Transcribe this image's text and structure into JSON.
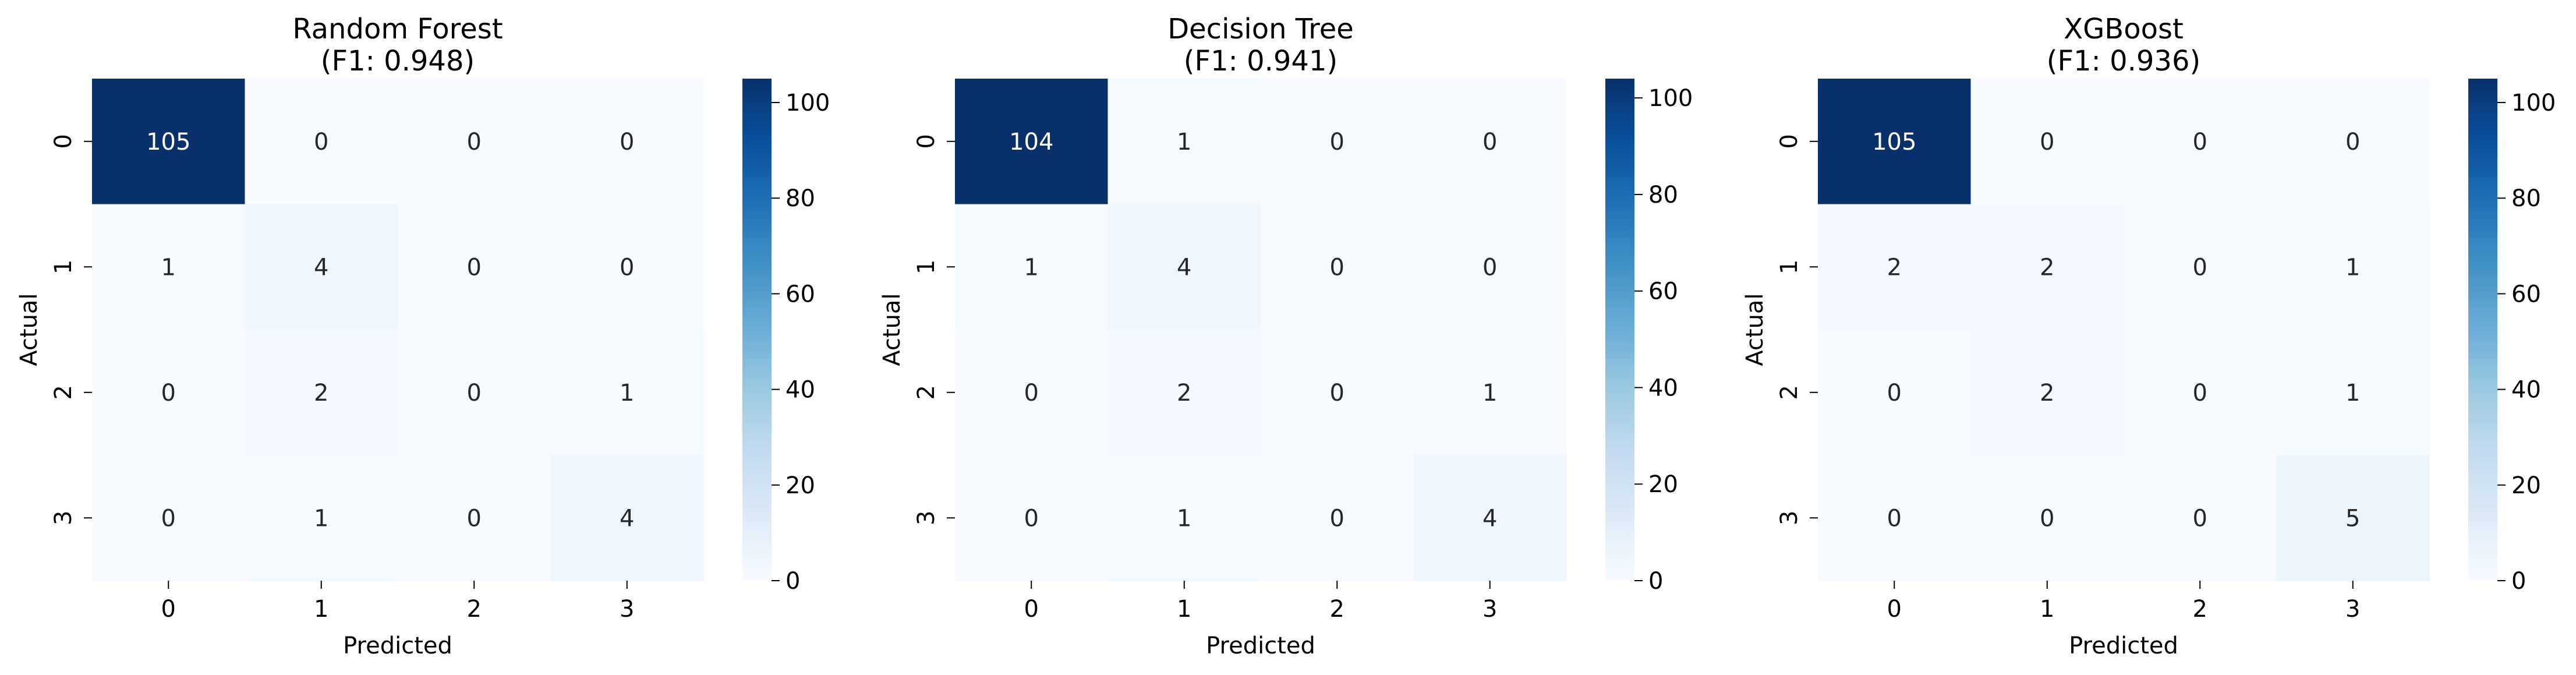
{
  "chart_data": [
    {
      "type": "heatmap",
      "title": "Random Forest",
      "subtitle": "(F1: 0.948)",
      "xlabel": "Predicted",
      "ylabel": "Actual",
      "x_categories": [
        "0",
        "1",
        "2",
        "3"
      ],
      "y_categories": [
        "0",
        "1",
        "2",
        "3"
      ],
      "matrix": [
        [
          105,
          0,
          0,
          0
        ],
        [
          1,
          4,
          0,
          0
        ],
        [
          0,
          2,
          0,
          1
        ],
        [
          0,
          1,
          0,
          4
        ]
      ],
      "colorbar": {
        "min": 0,
        "max": 105,
        "ticks": [
          "0",
          "20",
          "40",
          "60",
          "80",
          "100"
        ]
      },
      "colormap": "Blues"
    },
    {
      "type": "heatmap",
      "title": "Decision Tree",
      "subtitle": "(F1: 0.941)",
      "xlabel": "Predicted",
      "ylabel": "Actual",
      "x_categories": [
        "0",
        "1",
        "2",
        "3"
      ],
      "y_categories": [
        "0",
        "1",
        "2",
        "3"
      ],
      "matrix": [
        [
          104,
          1,
          0,
          0
        ],
        [
          1,
          4,
          0,
          0
        ],
        [
          0,
          2,
          0,
          1
        ],
        [
          0,
          1,
          0,
          4
        ]
      ],
      "colorbar": {
        "min": 0,
        "max": 104,
        "ticks": [
          "0",
          "20",
          "40",
          "60",
          "80",
          "100"
        ]
      },
      "colormap": "Blues"
    },
    {
      "type": "heatmap",
      "title": "XGBoost",
      "subtitle": "(F1: 0.936)",
      "xlabel": "Predicted",
      "ylabel": "Actual",
      "x_categories": [
        "0",
        "1",
        "2",
        "3"
      ],
      "y_categories": [
        "0",
        "1",
        "2",
        "3"
      ],
      "matrix": [
        [
          105,
          0,
          0,
          0
        ],
        [
          2,
          2,
          0,
          1
        ],
        [
          0,
          2,
          0,
          1
        ],
        [
          0,
          0,
          0,
          5
        ]
      ],
      "colorbar": {
        "min": 0,
        "max": 105,
        "ticks": [
          "0",
          "20",
          "40",
          "60",
          "80",
          "100"
        ]
      },
      "colormap": "Blues"
    }
  ],
  "colors": {
    "low": "#f7fbff",
    "high": "#08306b",
    "text_dark": "#262626",
    "text_light": "#ffffff"
  }
}
